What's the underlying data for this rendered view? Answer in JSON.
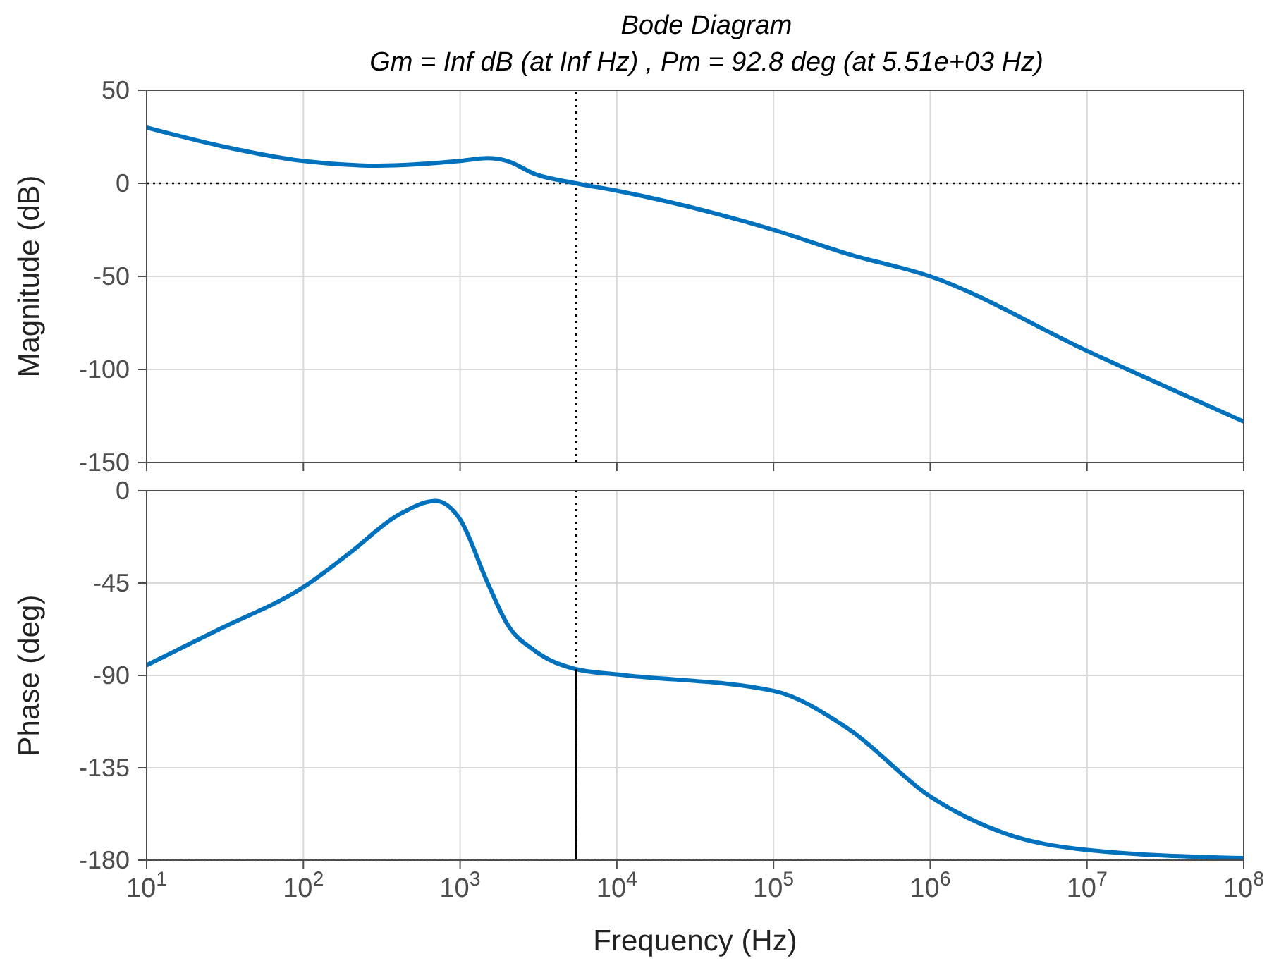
{
  "chart_data": [
    {
      "type": "line",
      "title": "Bode Diagram",
      "subtitle": "Gm = Inf dB (at Inf Hz) ,  Pm = 92.8 deg (at 5.51e+03 Hz)",
      "ylabel": "Magnitude (dB)",
      "log": "x",
      "grid": true,
      "tick_labels": "y",
      "xlim": [
        10,
        100000000
      ],
      "xticks": [
        10,
        100,
        1000,
        10000,
        100000,
        1000000,
        10000000,
        100000000
      ],
      "ylim": [
        -150,
        50
      ],
      "yticks": [
        -150,
        -100,
        -50,
        0,
        50
      ],
      "ref_lines": [
        {
          "axis": "y",
          "value": 0,
          "color": "#000000",
          "line_style": "dotted"
        },
        {
          "axis": "x",
          "value": 5510,
          "color": "#000000",
          "line_style": "dotted"
        }
      ],
      "series": [
        {
          "color": "#0072bd",
          "x": [
            10,
            30,
            100,
            300,
            1000,
            1500,
            2000,
            3000,
            5510,
            10000,
            100000,
            300000,
            1000000,
            10000000,
            100000000
          ],
          "values": [
            30,
            20,
            12,
            9.5,
            12,
            13.5,
            12,
            5,
            0,
            -4,
            -25,
            -38,
            -50,
            -90,
            -128
          ]
        }
      ]
    },
    {
      "type": "line",
      "ylabel": "Phase (deg)",
      "xlabel": "Frequency  (Hz)",
      "log": "x",
      "grid": true,
      "xlim": [
        10,
        100000000
      ],
      "xticks": [
        {
          "value": 10,
          "label": "10$^{1}$"
        },
        {
          "value": 100,
          "label": "10$^{2}$"
        },
        {
          "value": 1000,
          "label": "10$^{3}$"
        },
        {
          "value": 10000,
          "label": "10$^{4}$"
        },
        {
          "value": 100000,
          "label": "10$^{5}$"
        },
        {
          "value": 1000000,
          "label": "10$^{6}$"
        },
        {
          "value": 10000000,
          "label": "10$^{7}$"
        },
        {
          "value": 100000000,
          "label": "10$^{8}$"
        }
      ],
      "ylim": [
        -180,
        0
      ],
      "yticks": [
        -180,
        -135,
        -90,
        -45,
        0
      ],
      "ref_lines": [
        {
          "axis": "y",
          "value": -180,
          "color": "#000000",
          "line_style": "dotted"
        },
        {
          "axis": "x",
          "value": 5510,
          "color": "#000000",
          "line_style": "dotted"
        }
      ],
      "series": [
        {
          "color": "#0072bd",
          "x": [
            10,
            30,
            100,
            200,
            400,
            700,
            1000,
            1500,
            2000,
            3000,
            5510,
            10000,
            100000,
            300000,
            1000000,
            3000000,
            10000000,
            100000000
          ],
          "values": [
            -85,
            -67,
            -47,
            -30,
            -12,
            -5,
            -14,
            -45,
            -65,
            -78,
            -87,
            -89.5,
            -97.5,
            -116,
            -149,
            -167,
            -175,
            -179
          ]
        },
        {
          "color": "#000000",
          "x": [
            5510,
            5510
          ],
          "values": [
            -87,
            -180
          ]
        }
      ]
    }
  ]
}
